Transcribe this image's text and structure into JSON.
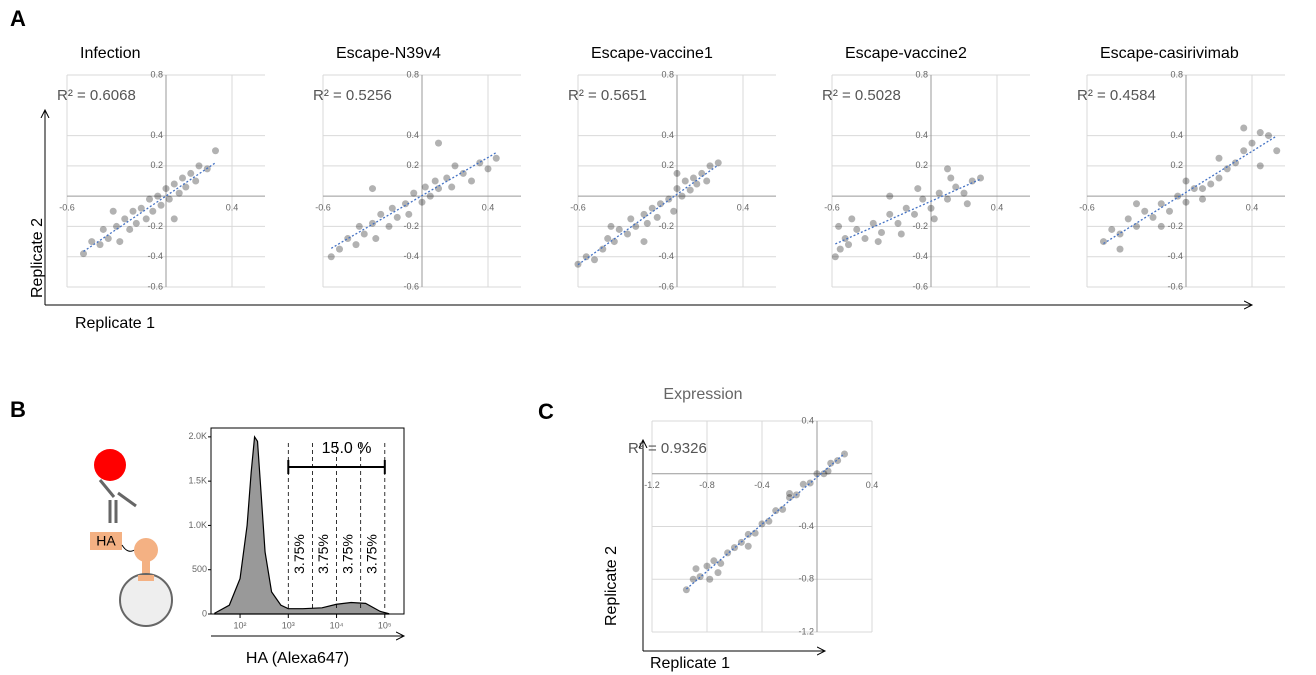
{
  "figure": {
    "panel_labels": [
      "A",
      "B",
      "C"
    ],
    "panel_a_x_label": "Replicate 1",
    "panel_a_y_label": "Replicate 2",
    "diagram_label": "HA"
  },
  "chart_data": [
    {
      "type": "scatter",
      "title": "Infection",
      "annotation": "R² = 0.6068",
      "color": "#000000",
      "trendline_color": "#4472c4",
      "xlim": [
        -0.6,
        0.6
      ],
      "ylim": [
        -0.6,
        0.8
      ],
      "xticks": [
        -0.6,
        0.4
      ],
      "yticks": [
        -0.6,
        -0.4,
        -0.2,
        0.2,
        0.4,
        0.8
      ],
      "grid": true,
      "x": [
        -0.5,
        -0.45,
        -0.4,
        -0.38,
        -0.35,
        -0.3,
        -0.28,
        -0.25,
        -0.22,
        -0.2,
        -0.18,
        -0.15,
        -0.12,
        -0.1,
        -0.08,
        -0.05,
        -0.03,
        0,
        0.02,
        0.05,
        0.08,
        0.1,
        0.12,
        0.15,
        0.18,
        0.2,
        0.25,
        0.3,
        -0.32,
        0.05
      ],
      "values": [
        -0.38,
        -0.3,
        -0.32,
        -0.22,
        -0.28,
        -0.2,
        -0.3,
        -0.15,
        -0.22,
        -0.1,
        -0.18,
        -0.08,
        -0.15,
        -0.02,
        -0.1,
        0.0,
        -0.06,
        0.05,
        -0.02,
        0.08,
        0.02,
        0.12,
        0.06,
        0.15,
        0.1,
        0.2,
        0.18,
        0.3,
        -0.1,
        -0.15
      ]
    },
    {
      "type": "scatter",
      "title": "Escape-N39v4",
      "annotation": "R² = 0.5256",
      "color": "#000000",
      "trendline_color": "#4472c4",
      "xlim": [
        -0.6,
        0.6
      ],
      "ylim": [
        -0.6,
        0.8
      ],
      "xticks": [
        -0.6,
        0.4
      ],
      "yticks": [
        -0.6,
        -0.4,
        -0.2,
        0.2,
        0.4,
        0.8
      ],
      "grid": true,
      "x": [
        -0.55,
        -0.5,
        -0.45,
        -0.4,
        -0.38,
        -0.35,
        -0.3,
        -0.28,
        -0.25,
        -0.2,
        -0.18,
        -0.15,
        -0.1,
        -0.08,
        -0.05,
        0,
        0.02,
        0.05,
        0.08,
        0.1,
        0.15,
        0.18,
        0.2,
        0.25,
        0.3,
        0.35,
        0.4,
        0.45,
        -0.3,
        0.1
      ],
      "values": [
        -0.4,
        -0.35,
        -0.28,
        -0.32,
        -0.2,
        -0.25,
        -0.18,
        -0.28,
        -0.12,
        -0.2,
        -0.08,
        -0.14,
        -0.05,
        -0.12,
        0.02,
        -0.04,
        0.06,
        0.0,
        0.1,
        0.05,
        0.12,
        0.06,
        0.2,
        0.15,
        0.1,
        0.22,
        0.18,
        0.25,
        0.05,
        0.35
      ]
    },
    {
      "type": "scatter",
      "title": "Escape-vaccine1",
      "annotation": "R² = 0.5651",
      "color": "#000000",
      "trendline_color": "#4472c4",
      "xlim": [
        -0.6,
        0.6
      ],
      "ylim": [
        -0.6,
        0.8
      ],
      "xticks": [
        -0.6,
        0.4
      ],
      "yticks": [
        -0.6,
        -0.4,
        -0.2,
        0.2,
        0.4,
        0.8
      ],
      "grid": true,
      "x": [
        -0.6,
        -0.55,
        -0.5,
        -0.45,
        -0.42,
        -0.38,
        -0.35,
        -0.3,
        -0.28,
        -0.25,
        -0.2,
        -0.18,
        -0.15,
        -0.12,
        -0.1,
        -0.05,
        -0.02,
        0,
        0.03,
        0.05,
        0.08,
        0.1,
        0.12,
        0.15,
        0.18,
        0.2,
        0.25,
        -0.2,
        0.0,
        -0.4
      ],
      "values": [
        -0.45,
        -0.4,
        -0.42,
        -0.35,
        -0.28,
        -0.3,
        -0.22,
        -0.25,
        -0.15,
        -0.2,
        -0.12,
        -0.18,
        -0.08,
        -0.14,
        -0.05,
        -0.02,
        -0.1,
        0.05,
        0.0,
        0.1,
        0.04,
        0.12,
        0.08,
        0.15,
        0.1,
        0.2,
        0.22,
        -0.3,
        0.15,
        -0.2
      ]
    },
    {
      "type": "scatter",
      "title": "Escape-vaccine2",
      "annotation": "R² = 0.5028",
      "color": "#000000",
      "trendline_color": "#4472c4",
      "xlim": [
        -0.6,
        0.6
      ],
      "ylim": [
        -0.6,
        0.8
      ],
      "xticks": [
        -0.6,
        0.4
      ],
      "yticks": [
        -0.6,
        -0.4,
        -0.2,
        0.2,
        0.4,
        0.8
      ],
      "grid": true,
      "x": [
        -0.58,
        -0.55,
        -0.52,
        -0.5,
        -0.45,
        -0.4,
        -0.35,
        -0.3,
        -0.25,
        -0.2,
        -0.15,
        -0.1,
        -0.05,
        0,
        0.05,
        0.1,
        0.15,
        0.2,
        0.25,
        0.3,
        -0.48,
        -0.32,
        -0.18,
        -0.08,
        0.02,
        0.12,
        0.22,
        -0.56,
        -0.25,
        0.1
      ],
      "values": [
        -0.4,
        -0.35,
        -0.28,
        -0.32,
        -0.22,
        -0.28,
        -0.18,
        -0.24,
        -0.12,
        -0.18,
        -0.08,
        -0.12,
        -0.02,
        -0.08,
        0.02,
        -0.02,
        0.06,
        0.02,
        0.1,
        0.12,
        -0.15,
        -0.3,
        -0.25,
        0.05,
        -0.15,
        0.12,
        -0.05,
        -0.2,
        0.0,
        0.18
      ]
    },
    {
      "type": "scatter",
      "title": "Escape-casirivimab",
      "annotation": "R² = 0.4584",
      "color": "#000000",
      "trendline_color": "#4472c4",
      "xlim": [
        -0.6,
        0.6
      ],
      "ylim": [
        -0.6,
        0.8
      ],
      "xticks": [
        -0.6,
        0.4
      ],
      "yticks": [
        -0.6,
        -0.4,
        -0.2,
        0.2,
        0.4,
        0.8
      ],
      "grid": true,
      "x": [
        -0.5,
        -0.45,
        -0.4,
        -0.35,
        -0.3,
        -0.25,
        -0.2,
        -0.15,
        -0.1,
        -0.05,
        0,
        0.05,
        0.1,
        0.15,
        0.2,
        0.25,
        0.3,
        0.35,
        0.4,
        0.45,
        0.5,
        0.55,
        -0.3,
        -0.15,
        0,
        0.1,
        0.2,
        0.35,
        0.45,
        -0.4
      ],
      "values": [
        -0.3,
        -0.22,
        -0.25,
        -0.15,
        -0.2,
        -0.1,
        -0.14,
        -0.05,
        -0.1,
        0.0,
        -0.04,
        0.05,
        -0.02,
        0.08,
        0.12,
        0.18,
        0.22,
        0.3,
        0.35,
        0.42,
        0.4,
        0.3,
        -0.05,
        -0.2,
        0.1,
        0.05,
        0.25,
        0.45,
        0.2,
        -0.35
      ]
    },
    {
      "type": "area",
      "x_label": "HA (Alexa647)",
      "log_x": true,
      "color": "#999999",
      "xlim": [
        25,
        250000
      ],
      "ylim": [
        0,
        2100
      ],
      "xticks": [
        {
          "value": 100,
          "label": "10²"
        },
        {
          "value": 1000,
          "label": "10³"
        },
        {
          "value": 10000,
          "label": "10⁴"
        },
        {
          "value": 100000,
          "label": "10⁵"
        }
      ],
      "yticks": [
        0,
        500,
        {
          "value": 1000,
          "label": "1.0K"
        },
        {
          "value": 1500,
          "label": "1.5K"
        },
        {
          "value": 2000,
          "label": "2.0K"
        }
      ],
      "x": [
        30,
        60,
        100,
        140,
        170,
        200,
        230,
        270,
        330,
        450,
        700,
        1000,
        2000,
        5000,
        10000,
        20000,
        40000,
        80000,
        120000
      ],
      "values": [
        10,
        100,
        400,
        1000,
        1600,
        2000,
        1950,
        1400,
        700,
        250,
        100,
        60,
        60,
        70,
        110,
        130,
        120,
        30,
        5
      ],
      "gates": [
        1000,
        3162,
        10000,
        31623,
        100000
      ],
      "gate_total_label": "15.0 %",
      "gate_labels": [
        "3.75%",
        "3.75%",
        "3.75%",
        "3.75%"
      ]
    },
    {
      "type": "scatter",
      "title": "Expression",
      "annotation": "R² = 0.9326",
      "x_label": "Replicate 1",
      "y_label": "Replicate 2",
      "color": "#000000",
      "trendline_color": "#4472c4",
      "xlim": [
        -1.2,
        0.4
      ],
      "ylim": [
        -1.2,
        0.4
      ],
      "xticks": [
        -1.2,
        -0.8,
        -0.4,
        0.4
      ],
      "yticks": [
        -1.2,
        -0.8,
        -0.4,
        0.4
      ],
      "grid": true,
      "x": [
        -0.95,
        -0.9,
        -0.88,
        -0.85,
        -0.8,
        -0.78,
        -0.75,
        -0.7,
        -0.65,
        -0.6,
        -0.55,
        -0.5,
        -0.45,
        -0.4,
        -0.35,
        -0.3,
        -0.25,
        -0.2,
        -0.15,
        -0.1,
        -0.05,
        0,
        0.05,
        0.1,
        0.15,
        0.2,
        -0.72,
        -0.5,
        -0.2,
        0.08
      ],
      "values": [
        -0.88,
        -0.8,
        -0.72,
        -0.78,
        -0.7,
        -0.8,
        -0.66,
        -0.68,
        -0.6,
        -0.56,
        -0.52,
        -0.46,
        -0.45,
        -0.38,
        -0.36,
        -0.28,
        -0.27,
        -0.18,
        -0.16,
        -0.08,
        -0.07,
        0.0,
        0.0,
        0.08,
        0.1,
        0.15,
        -0.75,
        -0.55,
        -0.15,
        0.02
      ]
    }
  ]
}
